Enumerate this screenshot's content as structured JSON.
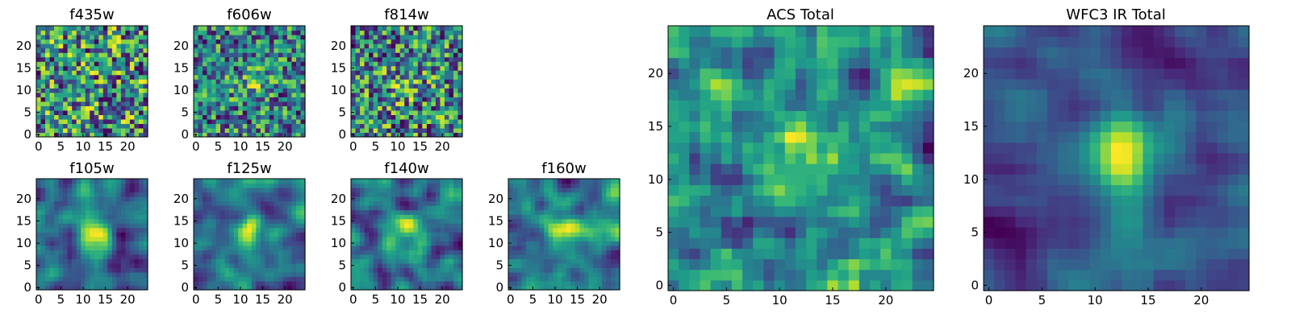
{
  "chart_data": [
    {
      "type": "heatmap",
      "title": "f435w",
      "size": 25,
      "xticks": [
        0,
        5,
        10,
        15,
        20
      ],
      "yticks": [
        0,
        5,
        10,
        15,
        20
      ],
      "texture": "noise",
      "blobs": []
    },
    {
      "type": "heatmap",
      "title": "f606w",
      "size": 25,
      "xticks": [
        0,
        5,
        10,
        15,
        20
      ],
      "yticks": [
        0,
        5,
        10,
        15,
        20
      ],
      "texture": "noise",
      "blobs": [
        [
          12,
          11,
          0.25,
          2.5
        ]
      ]
    },
    {
      "type": "heatmap",
      "title": "f814w",
      "size": 25,
      "xticks": [
        0,
        5,
        10,
        15,
        20
      ],
      "yticks": [
        0,
        5,
        10,
        15,
        20
      ],
      "texture": "noise",
      "blobs": [
        [
          12,
          11,
          0.2,
          2.5
        ]
      ]
    },
    {
      "type": "heatmap",
      "title": "f105w",
      "size": 25,
      "xticks": [
        0,
        5,
        10,
        15,
        20
      ],
      "yticks": [
        0,
        5,
        10,
        15,
        20
      ],
      "texture": "smooth",
      "blobs": [
        [
          12,
          12,
          0.4,
          2.5
        ]
      ]
    },
    {
      "type": "heatmap",
      "title": "f125w",
      "size": 25,
      "xticks": [
        0,
        5,
        10,
        15,
        20
      ],
      "yticks": [
        0,
        5,
        10,
        15,
        20
      ],
      "texture": "smooth",
      "blobs": [
        [
          12,
          12,
          0.35,
          2.5
        ]
      ]
    },
    {
      "type": "heatmap",
      "title": "f140w",
      "size": 25,
      "xticks": [
        0,
        5,
        10,
        15,
        20
      ],
      "yticks": [
        0,
        5,
        10,
        15,
        20
      ],
      "texture": "smooth",
      "blobs": [
        [
          12,
          12,
          0.3,
          3
        ]
      ]
    },
    {
      "type": "heatmap",
      "title": "f160w",
      "size": 25,
      "xticks": [
        0,
        5,
        10,
        15,
        20
      ],
      "yticks": [
        0,
        5,
        10,
        15,
        20
      ],
      "texture": "smooth",
      "blobs": [
        [
          12,
          12,
          0.3,
          3
        ]
      ]
    },
    {
      "type": "heatmap",
      "title": "ACS Total",
      "size": 25,
      "xticks": [
        0,
        5,
        10,
        15,
        20
      ],
      "yticks": [
        0,
        5,
        10,
        15,
        20
      ],
      "texture": "mixed",
      "blobs": [
        [
          12,
          12,
          0.3,
          2
        ]
      ]
    },
    {
      "type": "heatmap",
      "title": "WFC3 IR Total",
      "size": 25,
      "xticks": [
        0,
        5,
        10,
        15,
        20
      ],
      "yticks": [
        0,
        5,
        10,
        15,
        20
      ],
      "texture": "smooth",
      "blobs": [
        [
          12,
          12,
          0.55,
          2.5
        ]
      ]
    }
  ],
  "colors": {
    "viridis": [
      "#440154",
      "#482878",
      "#3e4989",
      "#31688e",
      "#26828e",
      "#1f9e89",
      "#35b779",
      "#6ece58",
      "#b5de2b",
      "#fde725"
    ]
  }
}
